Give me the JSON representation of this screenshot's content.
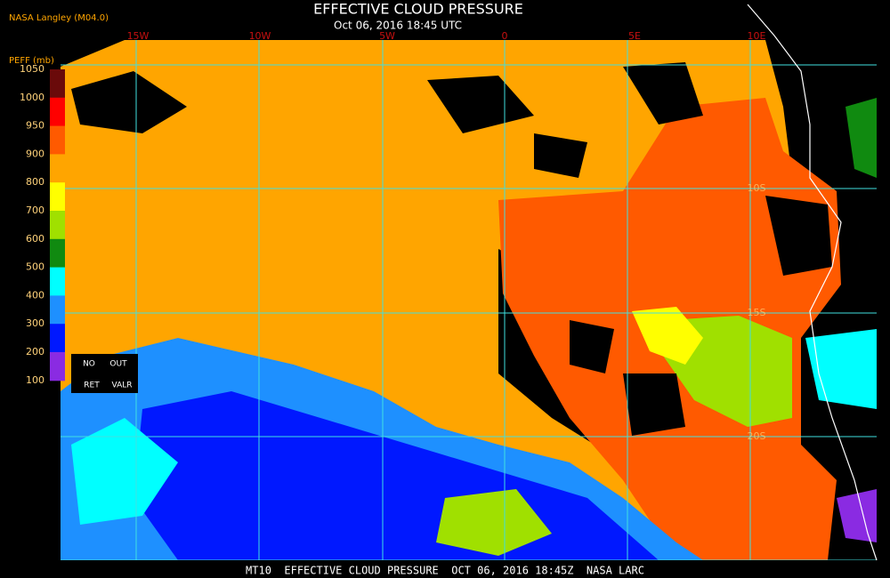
{
  "header": {
    "source": "NASA Langley (M04.0)",
    "title": "EFFECTIVE CLOUD PRESSURE",
    "subtitle": "Oct 06, 2016 18:45 UTC"
  },
  "map": {
    "longitude_labels": [
      "15W",
      "10W",
      "5W",
      "0",
      "5E",
      "10E"
    ],
    "latitude_labels": [
      "10S",
      "15S",
      "20S"
    ]
  },
  "legend": {
    "title": "PEFF (mb)",
    "labels": [
      1050,
      1000,
      950,
      900,
      800,
      700,
      600,
      500,
      400,
      300,
      200,
      100
    ],
    "colors": [
      "#6a0a0a",
      "#ff0000",
      "#ff5a00",
      "#ffa500",
      "#ffff00",
      "#a0e000",
      "#108a10",
      "#00ffff",
      "#1e90ff",
      "#0018ff",
      "#8a2be2"
    ],
    "flags": [
      "NO",
      "OUT",
      "RET",
      "VALR"
    ]
  },
  "footer": "MT10  EFFECTIVE CLOUD PRESSURE  OCT 06, 2016 18:45Z  NASA LARC"
}
